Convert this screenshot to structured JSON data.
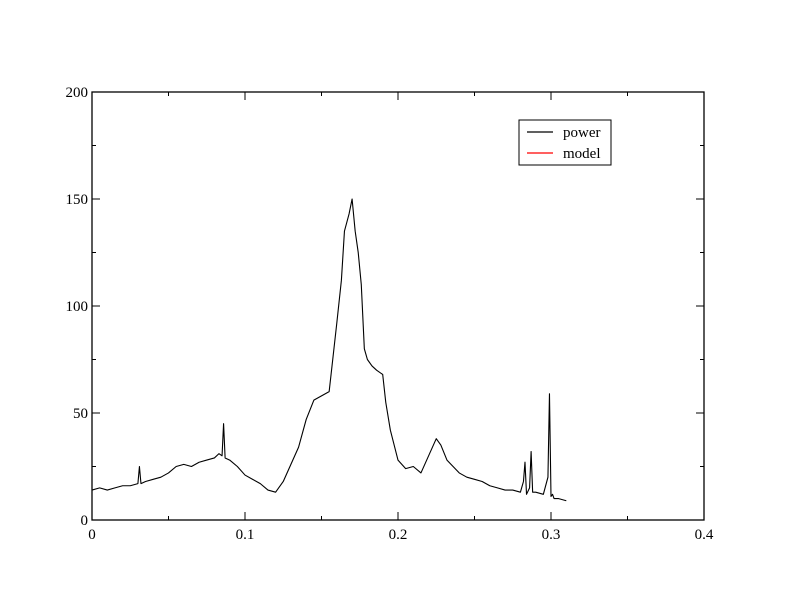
{
  "chart_data": {
    "type": "line",
    "title": "",
    "xlabel": "",
    "ylabel": "",
    "xlim": [
      0,
      0.4
    ],
    "ylim": [
      0,
      200
    ],
    "x_ticks": [
      "0",
      "0.1",
      "0.2",
      "0.3",
      "0.4"
    ],
    "y_ticks": [
      "0",
      "50",
      "100",
      "150",
      "200"
    ],
    "grid": false,
    "legend": {
      "placement": "top-right",
      "entries": [
        {
          "name": "power",
          "color": "#000000"
        },
        {
          "name": "model",
          "color": "#ff0000"
        }
      ]
    },
    "series": [
      {
        "name": "power",
        "color": "#000000",
        "x": [
          0.0,
          0.005,
          0.01,
          0.015,
          0.02,
          0.025,
          0.03,
          0.031,
          0.032,
          0.035,
          0.04,
          0.045,
          0.05,
          0.055,
          0.06,
          0.065,
          0.07,
          0.075,
          0.08,
          0.083,
          0.085,
          0.086,
          0.087,
          0.09,
          0.095,
          0.1,
          0.105,
          0.11,
          0.115,
          0.12,
          0.125,
          0.13,
          0.135,
          0.14,
          0.145,
          0.15,
          0.155,
          0.16,
          0.163,
          0.165,
          0.168,
          0.17,
          0.172,
          0.174,
          0.176,
          0.178,
          0.18,
          0.183,
          0.186,
          0.19,
          0.192,
          0.195,
          0.2,
          0.205,
          0.21,
          0.215,
          0.22,
          0.225,
          0.228,
          0.232,
          0.236,
          0.24,
          0.245,
          0.25,
          0.255,
          0.26,
          0.265,
          0.27,
          0.275,
          0.28,
          0.282,
          0.283,
          0.284,
          0.286,
          0.287,
          0.288,
          0.29,
          0.295,
          0.298,
          0.299,
          0.3,
          0.301,
          0.302,
          0.305,
          0.31
        ],
        "y": [
          14,
          15,
          14,
          15,
          16,
          16,
          17,
          25,
          17,
          18,
          19,
          20,
          22,
          25,
          26,
          25,
          27,
          28,
          29,
          31,
          30,
          45,
          29,
          28,
          25,
          21,
          19,
          17,
          14,
          13,
          18,
          26,
          34,
          47,
          56,
          58,
          60,
          92,
          112,
          135,
          143,
          150,
          135,
          125,
          110,
          80,
          75,
          72,
          70,
          68,
          55,
          42,
          28,
          24,
          25,
          22,
          30,
          38,
          35,
          28,
          25,
          22,
          20,
          19,
          18,
          16,
          15,
          14,
          14,
          13,
          18,
          27,
          12,
          15,
          32,
          13,
          13,
          12,
          20,
          59,
          11,
          12,
          10,
          10,
          9
        ]
      },
      {
        "name": "model",
        "color": "#ff0000",
        "x": [],
        "y": []
      }
    ]
  }
}
